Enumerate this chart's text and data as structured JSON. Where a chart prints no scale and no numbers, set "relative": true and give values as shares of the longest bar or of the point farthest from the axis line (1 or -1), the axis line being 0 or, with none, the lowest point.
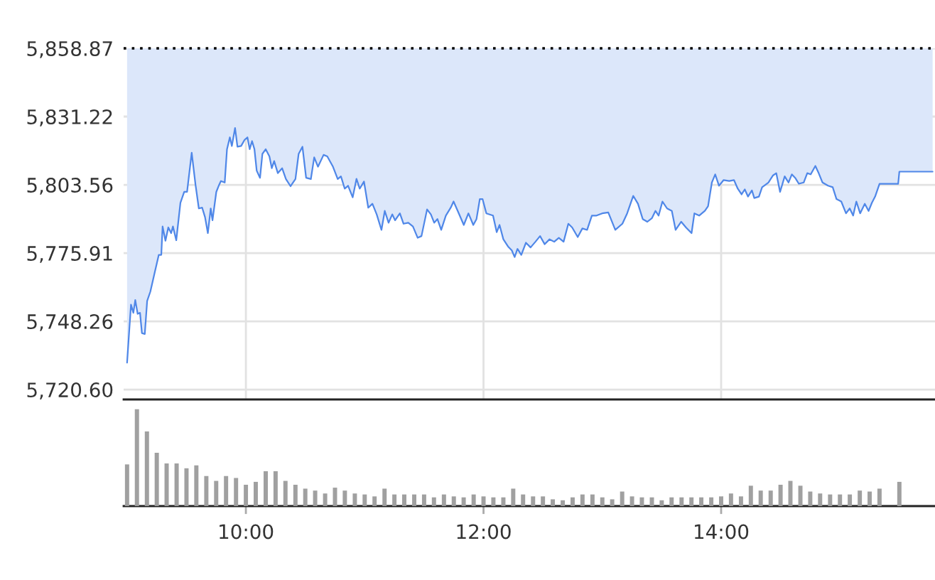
{
  "chart_data": [
    {
      "type": "line",
      "x": [
        9,
        9.033,
        9.053,
        9.069,
        9.089,
        9.109,
        9.125,
        9.149,
        9.169,
        9.196,
        9.228,
        9.267,
        9.288,
        9.299,
        9.323,
        9.347,
        9.371,
        9.386,
        9.414,
        9.449,
        9.481,
        9.505,
        9.544,
        9.576,
        9.604,
        9.632,
        9.656,
        9.68,
        9.704,
        9.719,
        9.751,
        9.775,
        9.79,
        9.822,
        9.841,
        9.865,
        9.882,
        9.909,
        9.929,
        9.96,
        9.989,
        10.013,
        10.032,
        10.052,
        10.072,
        10.091,
        10.119,
        10.139,
        10.167,
        10.198,
        10.218,
        10.238,
        10.269,
        10.305,
        10.337,
        10.376,
        10.417,
        10.444,
        10.476,
        10.507,
        10.547,
        10.575,
        10.607,
        10.654,
        10.685,
        10.733,
        10.773,
        10.8,
        10.832,
        10.86,
        10.899,
        10.931,
        10.958,
        10.994,
        11.03,
        11.065,
        11.101,
        11.141,
        11.169,
        11.201,
        11.232,
        11.256,
        11.296,
        11.327,
        11.367,
        11.406,
        11.446,
        11.478,
        11.525,
        11.557,
        11.585,
        11.612,
        11.644,
        11.683,
        11.724,
        11.748,
        11.783,
        11.834,
        11.873,
        11.914,
        11.941,
        11.969,
        11.992,
        12.024,
        12.08,
        12.111,
        12.135,
        12.167,
        12.206,
        12.238,
        12.262,
        12.286,
        12.318,
        12.357,
        12.396,
        12.437,
        12.476,
        12.515,
        12.556,
        12.595,
        12.634,
        12.674,
        12.714,
        12.746,
        12.793,
        12.832,
        12.872,
        12.912,
        12.951,
        12.999,
        13.05,
        13.109,
        13.169,
        13.209,
        13.26,
        13.3,
        13.34,
        13.379,
        13.418,
        13.447,
        13.474,
        13.506,
        13.545,
        13.585,
        13.617,
        13.664,
        13.704,
        13.751,
        13.775,
        13.815,
        13.863,
        13.89,
        13.922,
        13.95,
        13.982,
        14.021,
        14.068,
        14.108,
        14.14,
        14.172,
        14.199,
        14.226,
        14.259,
        14.279,
        14.318,
        14.345,
        14.398,
        14.437,
        14.464,
        14.496,
        14.535,
        14.567,
        14.595,
        14.623,
        14.654,
        14.695,
        14.725,
        14.754,
        14.793,
        14.821,
        14.853,
        14.9,
        14.939,
        14.971,
        15.011,
        15.051,
        15.082,
        15.111,
        15.138,
        15.17,
        15.209,
        15.241,
        15.269,
        15.296,
        15.333,
        15.49,
        15.5,
        15.78
      ],
      "series": [
        {
          "color": "#4f87e8",
          "values": [
            5731.5,
            5755.0,
            5751.7,
            5756.9,
            5751.3,
            5751.7,
            5743.5,
            5743.1,
            5756.5,
            5760.3,
            5767.1,
            5775.2,
            5775.2,
            5786.7,
            5780.9,
            5786.3,
            5784.0,
            5786.7,
            5781.1,
            5796.3,
            5800.7,
            5800.7,
            5816.6,
            5803.6,
            5794.0,
            5794.3,
            5790.5,
            5784.0,
            5794.0,
            5789.2,
            5800.7,
            5803.6,
            5805.1,
            5804.5,
            5818.0,
            5822.8,
            5819.3,
            5826.6,
            5819.0,
            5819.3,
            5821.8,
            5822.8,
            5818.0,
            5821.3,
            5818.0,
            5809.3,
            5806.4,
            5816.1,
            5818.0,
            5815.1,
            5810.3,
            5813.2,
            5808.3,
            5810.3,
            5805.9,
            5803.0,
            5805.9,
            5816.1,
            5819.0,
            5806.4,
            5805.9,
            5814.7,
            5810.9,
            5815.7,
            5815.1,
            5810.9,
            5805.9,
            5807.0,
            5802.0,
            5803.2,
            5798.5,
            5806.0,
            5802.0,
            5804.9,
            5794.3,
            5795.9,
            5791.6,
            5785.3,
            5793.0,
            5788.2,
            5791.6,
            5789.2,
            5792.0,
            5787.8,
            5788.2,
            5786.7,
            5782.1,
            5782.8,
            5793.6,
            5791.6,
            5788.2,
            5789.7,
            5785.3,
            5791.1,
            5794.3,
            5796.8,
            5793.0,
            5787.3,
            5792.0,
            5787.3,
            5789.7,
            5797.8,
            5797.8,
            5792.0,
            5791.1,
            5784.4,
            5787.3,
            5781.5,
            5778.6,
            5777.0,
            5774.3,
            5777.6,
            5775.2,
            5780.1,
            5778.2,
            5780.5,
            5782.8,
            5779.5,
            5781.5,
            5780.5,
            5782.1,
            5780.5,
            5787.8,
            5786.3,
            5782.4,
            5785.9,
            5785.3,
            5791.1,
            5791.1,
            5792.0,
            5792.4,
            5785.3,
            5787.8,
            5792.0,
            5799.1,
            5795.9,
            5789.7,
            5788.6,
            5790.1,
            5793.0,
            5791.1,
            5796.8,
            5794.0,
            5793.0,
            5785.3,
            5788.6,
            5786.3,
            5784.0,
            5792.0,
            5791.1,
            5793.0,
            5794.9,
            5804.5,
            5807.8,
            5803.2,
            5805.5,
            5805.1,
            5805.5,
            5802.0,
            5799.7,
            5801.7,
            5798.8,
            5801.3,
            5798.2,
            5798.8,
            5802.6,
            5804.5,
            5807.4,
            5808.3,
            5800.7,
            5807.0,
            5804.5,
            5807.8,
            5806.4,
            5804.0,
            5804.5,
            5808.3,
            5807.8,
            5811.2,
            5808.3,
            5804.5,
            5803.2,
            5802.6,
            5797.8,
            5796.8,
            5792.0,
            5794.0,
            5791.1,
            5796.8,
            5792.0,
            5795.9,
            5793.0,
            5796.3,
            5798.8,
            5804.0,
            5804.0,
            5808.9,
            5808.9
          ],
          "lower": [
            5731.5,
            5755.0,
            5751.7,
            5756.9,
            5751.3,
            5751.7,
            5743.5,
            5743.1,
            5756.5,
            5760.3,
            5767.1,
            5775.2,
            5775.2,
            5786.7,
            5780.9,
            5786.3,
            5784.0,
            5786.7,
            5781.1,
            5796.3,
            5800.7,
            5800.7,
            5816.6,
            5803.6,
            5794.0,
            5794.3,
            5790.5,
            5784.0,
            5794.0,
            5789.2,
            5800.7,
            5803.6,
            5805.1,
            5804.5,
            5818.0,
            5822.8,
            5819.3,
            5826.6,
            5819.0,
            5819.3,
            5821.8,
            5822.8,
            5818.0,
            5821.3,
            5818.0,
            5809.3,
            5806.4,
            5816.1,
            5818.0,
            5815.1,
            5810.3,
            5813.2,
            5808.3,
            5810.3,
            5805.9,
            5803.0,
            5805.9,
            5816.1,
            5819.0,
            5806.4,
            5805.9,
            5814.7,
            5810.9,
            5815.7,
            5815.1,
            5810.9,
            5805.9,
            5807.0,
            5802.0,
            5803.2,
            5798.5,
            5806.0,
            5802.0,
            5804.9,
            5794.3,
            5795.9,
            5791.6,
            5785.3,
            5793.0,
            5788.2,
            5791.6,
            5789.2,
            5792.0,
            5787.8,
            5788.2,
            5786.7,
            5782.1,
            5782.8,
            5793.6,
            5791.6,
            5788.2,
            5789.7,
            5785.3,
            5791.1,
            5794.3,
            5796.8,
            5793.0,
            5787.3,
            5792.0,
            5787.3,
            5789.7,
            5797.8,
            5797.8,
            5792.0,
            5791.1,
            5784.4,
            5787.3,
            5781.5,
            5778.6,
            5777.0,
            5774.3,
            5777.6,
            5775.2,
            5780.1,
            5778.2,
            5780.5,
            5782.8,
            5779.5,
            5781.5,
            5780.5,
            5782.1,
            5780.5,
            5787.8,
            5786.3,
            5782.4,
            5785.9,
            5785.3,
            5791.1,
            5791.1,
            5792.0,
            5792.4,
            5785.3,
            5787.8,
            5792.0,
            5799.1,
            5795.9,
            5789.7,
            5788.6,
            5790.1,
            5793.0,
            5791.1,
            5796.8,
            5794.0,
            5793.0,
            5785.3,
            5788.6,
            5786.3,
            5784.0,
            5792.0,
            5791.1,
            5793.0,
            5794.9,
            5804.5,
            5807.8,
            5803.2,
            5805.5,
            5805.1,
            5805.5,
            5802.0,
            5799.7,
            5801.7,
            5798.8,
            5801.3,
            5798.2,
            5798.8,
            5802.6,
            5804.5,
            5807.4,
            5808.3,
            5800.7,
            5807.0,
            5804.5,
            5807.8,
            5806.4,
            5804.0,
            5804.5,
            5808.3,
            5807.8,
            5811.2,
            5808.3,
            5804.5,
            5803.2,
            5802.6,
            5797.8,
            5796.8,
            5792.0,
            5794.0,
            5791.1,
            5796.8,
            5792.0,
            5795.9,
            5793.0,
            5796.3,
            5798.8,
            5804.0,
            5804.0,
            5808.9,
            5808.9
          ],
          "upper": [
            5858.87,
            5858.87,
            5858.87,
            5858.87,
            5858.87,
            5858.87,
            5858.87,
            5858.87,
            5858.87,
            5858.87,
            5858.87,
            5858.87,
            5858.87,
            5858.87,
            5858.87,
            5858.87,
            5858.87,
            5858.87,
            5858.87,
            5858.87,
            5858.87,
            5858.87,
            5858.87,
            5858.87,
            5858.87,
            5858.87,
            5858.87,
            5858.87,
            5858.87,
            5858.87,
            5858.87,
            5858.87,
            5858.87,
            5858.87,
            5858.87,
            5858.87,
            5858.87,
            5858.87,
            5858.87,
            5858.87,
            5858.87,
            5858.87,
            5858.87,
            5858.87,
            5858.87,
            5858.87,
            5858.87,
            5858.87,
            5858.87,
            5858.87,
            5858.87,
            5858.87,
            5858.87,
            5858.87,
            5858.87,
            5858.87,
            5858.87,
            5858.87,
            5858.87,
            5858.87,
            5858.87,
            5858.87,
            5858.87,
            5858.87,
            5858.87,
            5858.87,
            5858.87,
            5858.87,
            5858.87,
            5858.87,
            5858.87,
            5858.87,
            5858.87,
            5858.87,
            5858.87,
            5858.87,
            5858.87,
            5858.87,
            5858.87,
            5858.87,
            5858.87,
            5858.87,
            5858.87,
            5858.87,
            5858.87,
            5858.87,
            5858.87,
            5858.87,
            5858.87,
            5858.87,
            5858.87,
            5858.87,
            5858.87,
            5858.87,
            5858.87,
            5858.87,
            5858.87,
            5858.87,
            5858.87,
            5858.87,
            5858.87,
            5858.87,
            5858.87,
            5858.87,
            5858.87,
            5858.87,
            5858.87,
            5858.87,
            5858.87,
            5858.87,
            5858.87,
            5858.87,
            5858.87,
            5858.87,
            5858.87,
            5858.87,
            5858.87,
            5858.87,
            5858.87,
            5858.87,
            5858.87,
            5858.87,
            5858.87,
            5858.87,
            5858.87,
            5858.87,
            5858.87,
            5858.87,
            5858.87,
            5858.87,
            5858.87,
            5858.87,
            5858.87,
            5858.87,
            5858.87,
            5858.87,
            5858.87,
            5858.87,
            5858.87,
            5858.87,
            5858.87,
            5858.87,
            5858.87,
            5858.87,
            5858.87,
            5858.87,
            5858.87,
            5858.87,
            5858.87,
            5858.87,
            5858.87,
            5858.87,
            5858.87,
            5858.87,
            5858.87,
            5858.87,
            5858.87,
            5858.87,
            5858.87,
            5858.87,
            5858.87,
            5858.87,
            5858.87,
            5858.87,
            5858.87,
            5858.87,
            5858.87,
            5858.87,
            5858.87,
            5858.87,
            5858.87,
            5858.87,
            5858.87,
            5858.87,
            5858.87,
            5858.87,
            5858.87,
            5858.87,
            5858.87,
            5858.87,
            5858.87,
            5858.87,
            5858.87,
            5858.87,
            5858.87,
            5858.87,
            5858.87,
            5858.87,
            5858.87,
            5858.87,
            5858.87,
            5858.87,
            5858.87,
            5858.87,
            5858.87,
            5858.87,
            5858.87,
            5858.87
          ]
        }
      ],
      "xlim": [
        8.971,
        15.8
      ],
      "xticks": [
        {
          "value": 10,
          "label": null
        },
        {
          "value": 12,
          "label": null
        },
        {
          "value": 14,
          "label": null
        }
      ],
      "ylim": [
        5716.6,
        5858.87
      ],
      "yticks": [
        {
          "value": 5720.6,
          "label": "5,720.60"
        },
        {
          "value": 5748.26,
          "label": "5,748.26"
        },
        {
          "value": 5775.91,
          "label": "5,775.91"
        },
        {
          "value": 5803.56,
          "label": "5,803.56"
        },
        {
          "value": 5831.22,
          "label": "5,831.22"
        },
        {
          "value": 5858.87,
          "label": "5,858.87"
        }
      ],
      "ref_lines": [
        {
          "axis": "y",
          "value": 5858.87,
          "color": "#000000",
          "line_style": "dotted"
        }
      ],
      "grid": true,
      "tick_labels": "y"
    },
    {
      "type": "bar",
      "relative": true,
      "color": "#a0a0a0",
      "x": [
        9,
        9.083,
        9.167,
        9.25,
        9.333,
        9.417,
        9.5,
        9.583,
        9.667,
        9.75,
        9.833,
        9.917,
        10,
        10.083,
        10.167,
        10.25,
        10.333,
        10.417,
        10.5,
        10.583,
        10.667,
        10.75,
        10.833,
        10.917,
        11,
        11.083,
        11.167,
        11.25,
        11.333,
        11.417,
        11.5,
        11.583,
        11.667,
        11.75,
        11.833,
        11.917,
        12,
        12.083,
        12.167,
        12.25,
        12.333,
        12.417,
        12.5,
        12.583,
        12.667,
        12.75,
        12.833,
        12.917,
        13,
        13.083,
        13.167,
        13.25,
        13.333,
        13.417,
        13.5,
        13.583,
        13.667,
        13.75,
        13.833,
        13.917,
        14,
        14.083,
        14.167,
        14.25,
        14.333,
        14.417,
        14.5,
        14.583,
        14.667,
        14.75,
        14.833,
        14.917,
        15,
        15.083,
        15.167,
        15.25,
        15.333,
        15.417,
        15.5
      ],
      "values": [
        0.43,
        1,
        0.77,
        0.55,
        0.44,
        0.44,
        0.39,
        0.42,
        0.31,
        0.26,
        0.31,
        0.29,
        0.22,
        0.25,
        0.36,
        0.36,
        0.26,
        0.22,
        0.18,
        0.16,
        0.13,
        0.19,
        0.16,
        0.13,
        0.12,
        0.1,
        0.18,
        0.12,
        0.12,
        0.12,
        0.12,
        0.09,
        0.12,
        0.1,
        0.09,
        0.12,
        0.1,
        0.09,
        0.09,
        0.18,
        0.12,
        0.1,
        0.1,
        0.07,
        0.06,
        0.09,
        0.12,
        0.12,
        0.09,
        0.07,
        0.15,
        0.1,
        0.09,
        0.09,
        0.06,
        0.09,
        0.09,
        0.09,
        0.09,
        0.09,
        0.1,
        0.13,
        0.1,
        0.21,
        0.16,
        0.16,
        0.22,
        0.26,
        0.21,
        0.15,
        0.13,
        0.12,
        0.12,
        0.12,
        0.16,
        0.15,
        0.18,
        null,
        0.25
      ],
      "xlim": [
        8.971,
        15.8
      ],
      "xticks": [
        {
          "value": 10,
          "label": "10:00"
        },
        {
          "value": 12,
          "label": "12:00"
        },
        {
          "value": 14,
          "label": "14:00"
        }
      ],
      "tick_labels": "x"
    }
  ]
}
